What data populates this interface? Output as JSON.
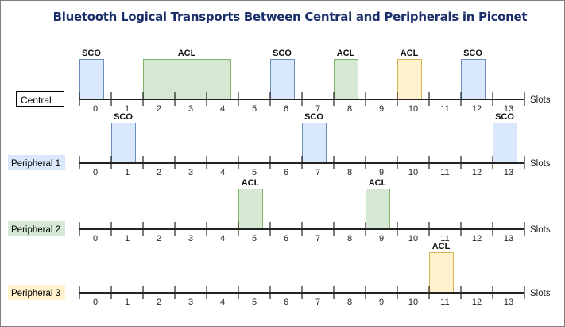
{
  "title": "Bluetooth Logical Transports Between Central and Peripherals in Piconet",
  "axis_label": "Slots",
  "slots": [
    "0",
    "1",
    "2",
    "3",
    "4",
    "5",
    "6",
    "7",
    "8",
    "9",
    "10",
    "11",
    "12",
    "13"
  ],
  "colors": {
    "blue": {
      "fill": "#dae8fc",
      "stroke": "#6c8ebf"
    },
    "green": {
      "fill": "#d5e8d4",
      "stroke": "#82b366"
    },
    "yellow": {
      "fill": "#fff2cc",
      "stroke": "#d6b656"
    },
    "white": {
      "fill": "#ffffff",
      "stroke": "#000000"
    }
  },
  "rows": [
    {
      "name": "Central",
      "label_color": "white",
      "packets": [
        {
          "label": "SCO",
          "slot": 0,
          "span": 0.75,
          "color": "blue"
        },
        {
          "label": "ACL",
          "slot": 2,
          "span": 2.75,
          "color": "green"
        },
        {
          "label": "SCO",
          "slot": 6,
          "span": 0.75,
          "color": "blue"
        },
        {
          "label": "ACL",
          "slot": 8,
          "span": 0.75,
          "color": "green"
        },
        {
          "label": "ACL",
          "slot": 10,
          "span": 0.75,
          "color": "yellow"
        },
        {
          "label": "SCO",
          "slot": 12,
          "span": 0.75,
          "color": "blue"
        }
      ]
    },
    {
      "name": "Peripheral 1",
      "label_color": "blue",
      "packets": [
        {
          "label": "SCO",
          "slot": 1,
          "span": 0.75,
          "color": "blue"
        },
        {
          "label": "SCO",
          "slot": 7,
          "span": 0.75,
          "color": "blue"
        },
        {
          "label": "SCO",
          "slot": 13,
          "span": 0.75,
          "color": "blue"
        }
      ]
    },
    {
      "name": "Peripheral 2",
      "label_color": "green",
      "packets": [
        {
          "label": "ACL",
          "slot": 5,
          "span": 0.75,
          "color": "green"
        },
        {
          "label": "ACL",
          "slot": 9,
          "span": 0.75,
          "color": "green"
        }
      ]
    },
    {
      "name": "Peripheral 3",
      "label_color": "yellow",
      "packets": [
        {
          "label": "ACL",
          "slot": 11,
          "span": 0.75,
          "color": "yellow"
        }
      ]
    }
  ]
}
